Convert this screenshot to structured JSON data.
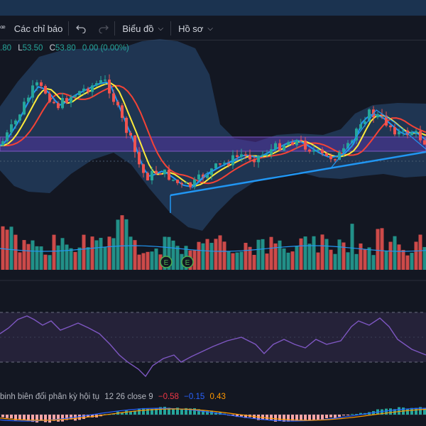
{
  "toolbar": {
    "indicators_label": "Các chỉ báo",
    "chart_label": "Biểu đồ",
    "profile_label": "Hồ sơ"
  },
  "legend": {
    "open_tail": ".80",
    "low_key": "L",
    "low_value": "53.50",
    "close_key": "C",
    "close_value": "53.80",
    "change": "0.00 (0.00%)"
  },
  "macd": {
    "title": "binh biên đổi phân kỳ hội tụ",
    "params": "12 26 close 9",
    "value_1": "−0.58",
    "value_2": "−0.15",
    "value_3": "0.43"
  },
  "markers": {
    "earnings_1": "E",
    "earnings_2": "E"
  },
  "colors": {
    "up": "#26a69a",
    "down": "#ef5350",
    "band_fill": "#2a4f7a",
    "ma_fast": "#2196f3",
    "ma_mid": "#ffeb3b",
    "ma_slow": "#f44336",
    "rsi": "#7e57c2",
    "trendline": "#2196f3",
    "zone": "#5e35b1"
  },
  "icons": [
    "currency-symbol-icon",
    "undo-icon",
    "redo-icon",
    "chevron-down-icon"
  ]
}
